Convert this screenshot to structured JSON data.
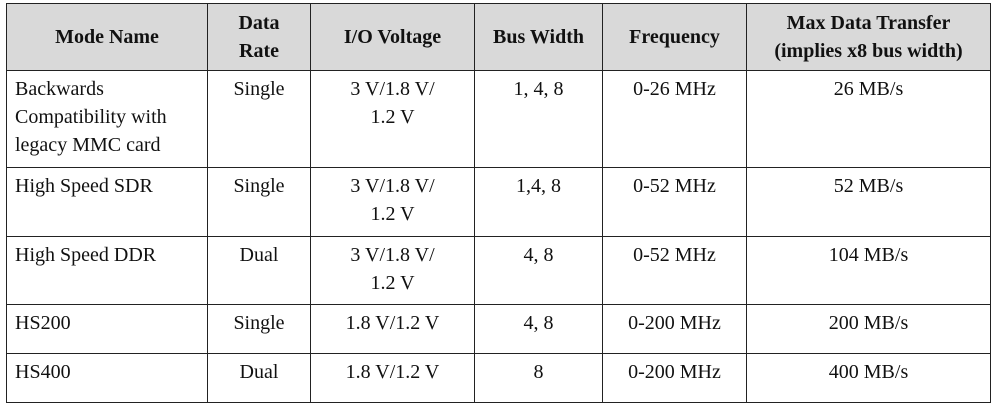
{
  "table": {
    "header": [
      "Mode Name",
      "Data\nRate",
      "I/O Voltage",
      "Bus Width",
      "Frequency",
      "Max Data Transfer\n(implies x8 bus width)"
    ],
    "rows": [
      [
        "Backwards\nCompatibility with\nlegacy MMC card",
        "Single",
        "3 V/1.8 V/\n1.2 V",
        "1, 4, 8",
        "0-26 MHz",
        "26 MB/s"
      ],
      [
        "High Speed SDR",
        "Single",
        "3 V/1.8 V/\n1.2 V",
        "1,4, 8",
        "0-52 MHz",
        "52 MB/s"
      ],
      [
        "High Speed DDR",
        "Dual",
        "3 V/1.8 V/\n1.2 V",
        "4, 8",
        "0-52 MHz",
        "104 MB/s"
      ],
      [
        "HS200",
        "Single",
        "1.8 V/1.2 V",
        "4, 8",
        "0-200 MHz",
        "200 MB/s"
      ],
      [
        "HS400",
        "Dual",
        "1.8 V/1.2 V",
        "8",
        "0-200 MHz",
        "400 MB/s"
      ]
    ]
  }
}
